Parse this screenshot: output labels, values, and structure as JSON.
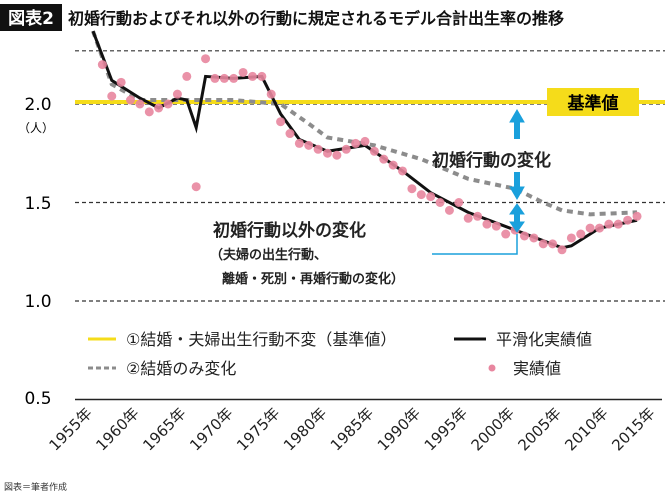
{
  "title_badge": "図表2",
  "title": "初婚行動およびそれ以外の行動に規定されるモデル合計出生率の推移",
  "footer": "図表＝筆者作成",
  "colors": {
    "baseline": "#f5dc1a",
    "smoothed": "#111111",
    "marriage_only": "#8c8c8c",
    "actual": "#e8869f",
    "arrow": "#1aa0dc"
  },
  "chart_data": {
    "type": "line",
    "ylabel_unit": "（人）",
    "ylim": [
      0.5,
      2.3
    ],
    "yticks": [
      "2.0",
      "1.5",
      "1.0",
      "0.5"
    ],
    "xticks": [
      "1955年",
      "1960年",
      "1965年",
      "1970年",
      "1975年",
      "1980年",
      "1985年",
      "1990年",
      "1995年",
      "2000年",
      "2005年",
      "2010年",
      "2015年"
    ],
    "xlim": [
      1955,
      2015
    ],
    "grid": "dashed horizontal",
    "annotations": {
      "base_box": "基準値",
      "first_marriage": "初婚行動の変化",
      "other": "初婚行動以外の変化",
      "other_sub1": "（夫婦の出生行動、",
      "other_sub2": "離婚・死別・再婚行動の変化）"
    },
    "legend": [
      "①結婚・夫婦出生行動不変（基準値）",
      "平滑化実績値",
      "②結婚のみ変化",
      "実績値"
    ],
    "series": [
      {
        "name": "①結婚・夫婦出生行動不変（基準値）",
        "x": [
          1955,
          2015
        ],
        "y": [
          2.01,
          2.01
        ]
      },
      {
        "name": "平滑化実績値",
        "x": [
          1955,
          1957,
          1960,
          1962,
          1964,
          1965,
          1966,
          1967,
          1970,
          1973,
          1975,
          1977,
          1980,
          1984,
          1988,
          1991,
          1995,
          2000,
          2005,
          2006,
          2009,
          2013
        ],
        "y": [
          2.37,
          2.12,
          2.03,
          1.98,
          2.03,
          2.02,
          1.88,
          2.14,
          2.13,
          2.14,
          1.95,
          1.82,
          1.76,
          1.79,
          1.66,
          1.55,
          1.45,
          1.36,
          1.27,
          1.28,
          1.37,
          1.41
        ]
      },
      {
        "name": "②結婚のみ変化",
        "x": [
          1955,
          1957,
          1960,
          1965,
          1970,
          1975,
          1978,
          1980,
          1985,
          1990,
          1995,
          2000,
          2003,
          2005,
          2008,
          2013
        ],
        "y": [
          2.37,
          2.1,
          2.02,
          2.02,
          2.02,
          2.0,
          1.9,
          1.83,
          1.79,
          1.72,
          1.62,
          1.57,
          1.5,
          1.46,
          1.44,
          1.45
        ]
      },
      {
        "name": "実績値",
        "x": [
          1956,
          1957,
          1958,
          1959,
          1960,
          1961,
          1962,
          1963,
          1964,
          1965,
          1966,
          1967,
          1968,
          1969,
          1970,
          1971,
          1972,
          1973,
          1974,
          1975,
          1976,
          1977,
          1978,
          1979,
          1980,
          1981,
          1982,
          1983,
          1984,
          1985,
          1986,
          1987,
          1988,
          1989,
          1990,
          1991,
          1992,
          1993,
          1994,
          1995,
          1996,
          1997,
          1998,
          1999,
          2000,
          2001,
          2002,
          2003,
          2004,
          2005,
          2006,
          2007,
          2008,
          2009,
          2010,
          2011,
          2012,
          2013
        ],
        "y": [
          2.2,
          2.04,
          2.11,
          2.02,
          2.0,
          1.96,
          1.98,
          2.0,
          2.05,
          2.14,
          1.58,
          2.23,
          2.13,
          2.13,
          2.13,
          2.16,
          2.14,
          2.14,
          2.05,
          1.91,
          1.85,
          1.8,
          1.79,
          1.77,
          1.75,
          1.74,
          1.77,
          1.8,
          1.81,
          1.76,
          1.72,
          1.69,
          1.66,
          1.57,
          1.54,
          1.53,
          1.5,
          1.46,
          1.5,
          1.42,
          1.43,
          1.39,
          1.38,
          1.34,
          1.36,
          1.33,
          1.32,
          1.29,
          1.29,
          1.26,
          1.32,
          1.34,
          1.37,
          1.37,
          1.39,
          1.39,
          1.41,
          1.43
        ]
      }
    ]
  }
}
